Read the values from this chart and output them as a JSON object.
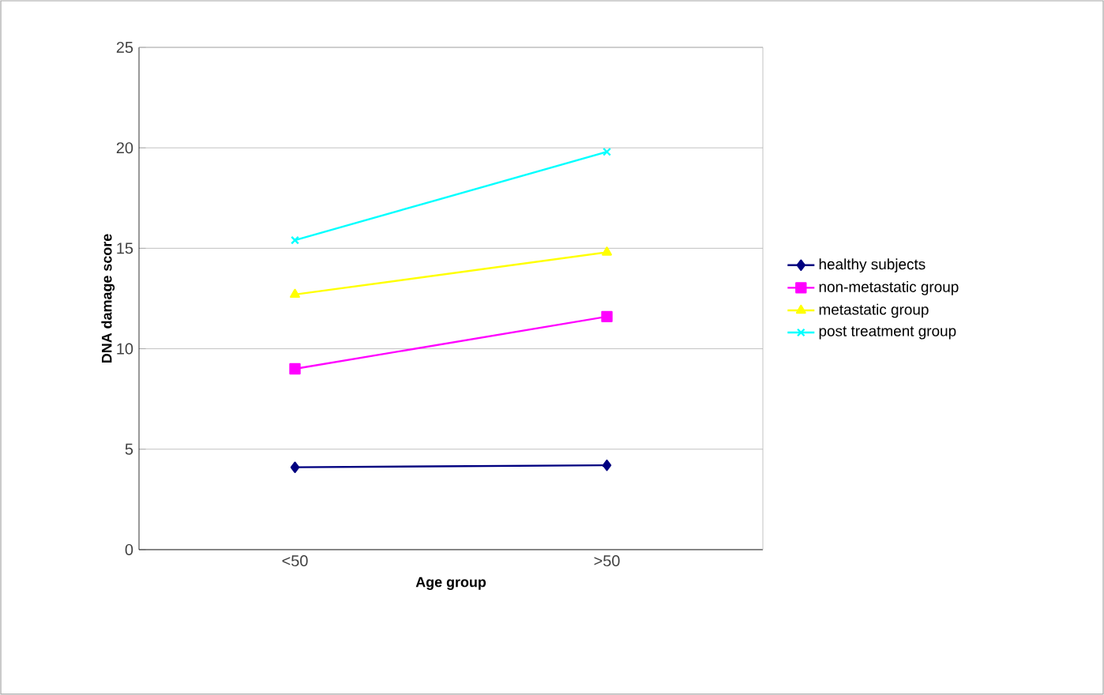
{
  "chart_data": {
    "type": "line",
    "xlabel": "Age group",
    "ylabel": "DNA damage score",
    "categories": [
      "<50",
      ">50"
    ],
    "series": [
      {
        "name": "healthy subjects",
        "color": "#000080",
        "marker": "diamond",
        "values": [
          4.1,
          4.2
        ]
      },
      {
        "name": "non-metastatic group",
        "color": "#ff00ff",
        "marker": "square",
        "values": [
          9.0,
          11.6
        ]
      },
      {
        "name": "metastatic group",
        "color": "#ffff00",
        "marker": "triangle",
        "values": [
          12.7,
          14.8
        ]
      },
      {
        "name": "post treatment group",
        "color": "#00ffff",
        "marker": "cross",
        "values": [
          15.4,
          19.8
        ]
      }
    ],
    "ylim": [
      0,
      25
    ],
    "yticks": [
      0,
      5,
      10,
      15,
      20,
      25
    ],
    "grid": "y",
    "legend": "right"
  }
}
